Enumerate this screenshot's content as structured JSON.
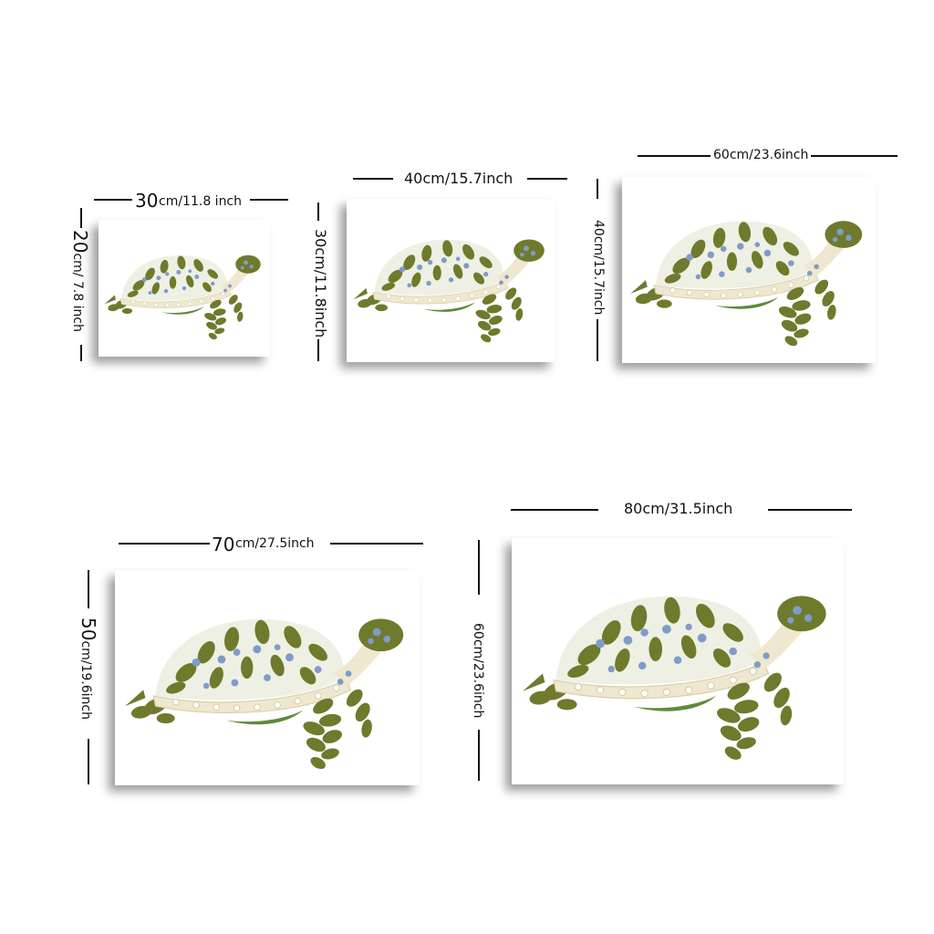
{
  "sizes": [
    {
      "id": "s1",
      "width_main": "30",
      "width_rest": "cm/11.8 inch",
      "height_main": "20",
      "height_rest": "cm/ 7.8 inch"
    },
    {
      "id": "s2",
      "width_text": "40cm/15.7inch",
      "height_text": "30cm/11.8inch"
    },
    {
      "id": "s3",
      "width_text": "60cm/23.6inch",
      "height_text": "40cm/15.7inch"
    },
    {
      "id": "s4",
      "width_main": "70",
      "width_rest": "cm/27.5inch",
      "height_main": "50",
      "height_rest": "cm/19.6inch"
    },
    {
      "id": "s5",
      "width_text": "80cm/31.5inch",
      "height_text": "60cm/23.6inch"
    }
  ],
  "artwork": {
    "subject": "turtle-icon",
    "leaf_color": "#6f7a2c",
    "flower_color": "#7e9cc8",
    "cream_color": "#efe7cf"
  }
}
